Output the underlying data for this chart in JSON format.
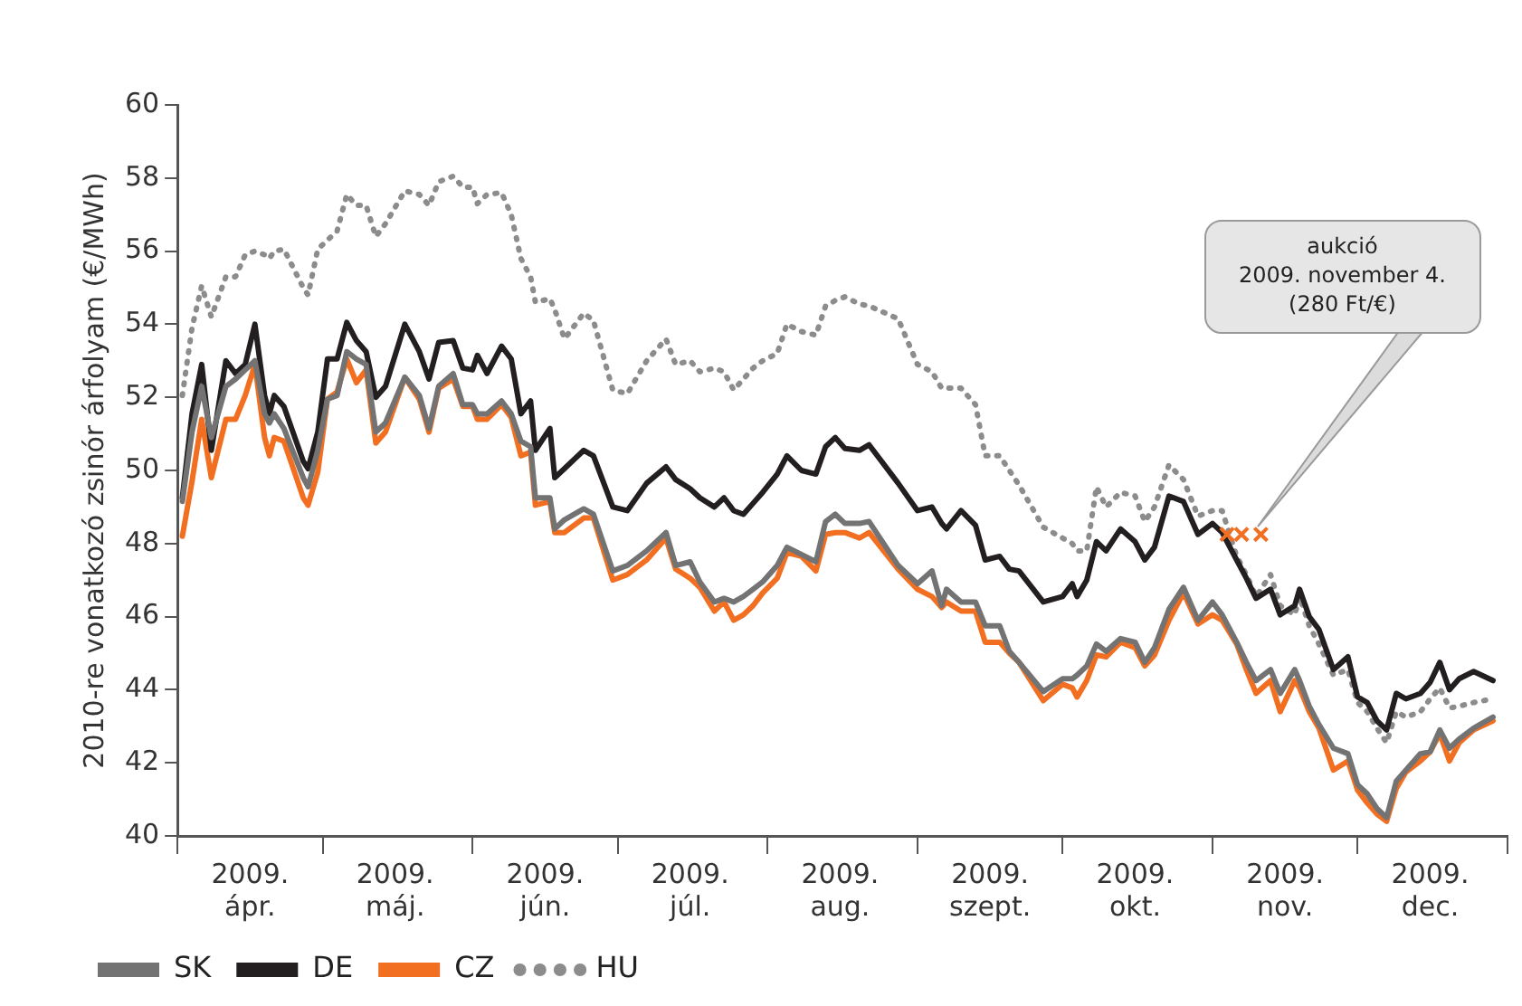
{
  "chart_data": {
    "type": "line",
    "ylabel": "2010-re vonatkozó zsinór árfolyam (€/MWh)",
    "ylim": [
      40,
      60
    ],
    "yticks": [
      40,
      42,
      44,
      46,
      48,
      50,
      52,
      54,
      56,
      58,
      60
    ],
    "xlim": [
      "2009-04-01",
      "2010-01-01"
    ],
    "xticks": [
      {
        "value": "2009-04-01",
        "label": null
      },
      {
        "value": "2009-04-16",
        "label": "2009.\nápr."
      },
      {
        "value": "2009-05-01",
        "label": null
      },
      {
        "value": "2009-05-16",
        "label": "2009.\nmáj."
      },
      {
        "value": "2009-06-01",
        "label": null
      },
      {
        "value": "2009-06-16",
        "label": "2009.\njún."
      },
      {
        "value": "2009-07-01",
        "label": null
      },
      {
        "value": "2009-07-16",
        "label": "2009.\njúl."
      },
      {
        "value": "2009-08-01",
        "label": null
      },
      {
        "value": "2009-08-16",
        "label": "2009.\naug."
      },
      {
        "value": "2009-09-01",
        "label": null
      },
      {
        "value": "2009-09-16",
        "label": "2009.\nszept."
      },
      {
        "value": "2009-10-01",
        "label": null
      },
      {
        "value": "2009-10-16",
        "label": "2009.\nokt."
      },
      {
        "value": "2009-11-01",
        "label": null
      },
      {
        "value": "2009-11-16",
        "label": "2009.\nnov."
      },
      {
        "value": "2009-12-01",
        "label": null
      },
      {
        "value": "2009-12-16",
        "label": "2009.\ndec."
      },
      {
        "value": "2010-01-01",
        "label": null
      }
    ],
    "x": [
      "2009-04-02",
      "2009-04-04",
      "2009-04-06",
      "2009-04-08",
      "2009-04-11",
      "2009-04-13",
      "2009-04-15",
      "2009-04-17",
      "2009-04-19",
      "2009-04-20",
      "2009-04-21",
      "2009-04-23",
      "2009-04-27",
      "2009-04-28",
      "2009-04-30",
      "2009-05-02",
      "2009-05-04",
      "2009-05-06",
      "2009-05-08",
      "2009-05-10",
      "2009-05-12",
      "2009-05-14",
      "2009-05-18",
      "2009-05-21",
      "2009-05-23",
      "2009-05-25",
      "2009-05-28",
      "2009-05-30",
      "2009-06-01",
      "2009-06-02",
      "2009-06-04",
      "2009-06-07",
      "2009-06-09",
      "2009-06-11",
      "2009-06-13",
      "2009-06-14",
      "2009-06-17",
      "2009-06-18",
      "2009-06-20",
      "2009-06-24",
      "2009-06-26",
      "2009-06-30",
      "2009-07-03",
      "2009-07-07",
      "2009-07-11",
      "2009-07-13",
      "2009-07-16",
      "2009-07-18",
      "2009-07-21",
      "2009-07-23",
      "2009-07-25",
      "2009-07-27",
      "2009-07-29",
      "2009-07-31",
      "2009-08-03",
      "2009-08-05",
      "2009-08-08",
      "2009-08-11",
      "2009-08-13",
      "2009-08-15",
      "2009-08-17",
      "2009-08-20",
      "2009-08-22",
      "2009-08-28",
      "2009-09-01",
      "2009-09-04",
      "2009-09-06",
      "2009-09-07",
      "2009-09-10",
      "2009-09-13",
      "2009-09-15",
      "2009-09-18",
      "2009-09-20",
      "2009-09-22",
      "2009-09-27",
      "2009-10-01",
      "2009-10-03",
      "2009-10-04",
      "2009-10-06",
      "2009-10-08",
      "2009-10-10",
      "2009-10-13",
      "2009-10-16",
      "2009-10-18",
      "2009-10-20",
      "2009-10-23",
      "2009-10-26",
      "2009-10-29",
      "2009-11-01",
      "2009-11-03",
      "2009-11-06",
      "2009-11-08",
      "2009-11-10",
      "2009-11-13",
      "2009-11-15",
      "2009-11-18",
      "2009-11-19",
      "2009-11-21",
      "2009-11-23",
      "2009-11-26",
      "2009-11-29",
      "2009-12-01",
      "2009-12-03",
      "2009-12-05",
      "2009-12-07",
      "2009-12-09",
      "2009-12-11",
      "2009-12-14",
      "2009-12-16",
      "2009-12-18",
      "2009-12-20",
      "2009-12-22",
      "2009-12-25",
      "2009-12-29"
    ],
    "series": [
      {
        "name": "SK",
        "color": "#737373",
        "values": [
          49.15,
          51.05,
          52.3,
          50.9,
          52.3,
          52.5,
          52.75,
          53.0,
          51.55,
          51.3,
          51.55,
          51.15,
          49.8,
          49.55,
          50.55,
          51.95,
          52.05,
          53.25,
          53.05,
          52.9,
          51.05,
          51.3,
          52.55,
          52.05,
          51.15,
          52.3,
          52.65,
          51.8,
          51.8,
          51.55,
          51.55,
          51.9,
          51.55,
          50.8,
          50.65,
          49.25,
          49.25,
          48.4,
          48.65,
          48.95,
          48.8,
          47.25,
          47.4,
          47.8,
          48.3,
          47.4,
          47.5,
          46.95,
          46.4,
          46.5,
          46.4,
          46.55,
          46.75,
          46.95,
          47.4,
          47.9,
          47.7,
          47.5,
          48.6,
          48.8,
          48.55,
          48.55,
          48.6,
          47.4,
          46.9,
          47.25,
          46.3,
          46.75,
          46.4,
          46.4,
          45.75,
          45.75,
          45.05,
          44.75,
          43.95,
          44.3,
          44.3,
          44.4,
          44.65,
          45.25,
          45.05,
          45.4,
          45.3,
          44.75,
          45.15,
          46.2,
          46.8,
          45.9,
          46.4,
          46.05,
          45.3,
          44.75,
          44.25,
          44.55,
          43.9,
          44.55,
          44.25,
          43.55,
          43.05,
          42.4,
          42.25,
          41.4,
          41.15,
          40.75,
          40.5,
          41.5,
          41.8,
          42.25,
          42.3,
          42.9,
          42.4,
          42.65,
          42.95,
          43.25
        ]
      },
      {
        "name": "DE",
        "color": "#231f20",
        "values": [
          49.25,
          51.55,
          52.9,
          50.55,
          53.0,
          52.65,
          52.9,
          54.0,
          52.05,
          51.55,
          52.05,
          51.75,
          50.25,
          50.05,
          51.05,
          53.05,
          53.05,
          54.05,
          53.55,
          53.25,
          52.0,
          52.3,
          54.0,
          53.25,
          52.5,
          53.5,
          53.55,
          52.8,
          52.75,
          53.15,
          52.65,
          53.4,
          53.05,
          51.55,
          51.9,
          50.55,
          51.15,
          49.8,
          50.05,
          50.55,
          50.4,
          49.0,
          48.9,
          49.65,
          50.1,
          49.75,
          49.5,
          49.25,
          49.0,
          49.25,
          48.9,
          48.8,
          49.1,
          49.4,
          49.9,
          50.4,
          50.0,
          49.9,
          50.65,
          50.9,
          50.6,
          50.55,
          50.7,
          49.65,
          48.9,
          49.0,
          48.55,
          48.4,
          48.9,
          48.5,
          47.55,
          47.65,
          47.3,
          47.25,
          46.4,
          46.55,
          46.9,
          46.55,
          47.0,
          48.05,
          47.8,
          48.4,
          48.05,
          47.55,
          47.9,
          49.3,
          49.15,
          48.25,
          48.55,
          48.3,
          47.55,
          47.05,
          46.5,
          46.75,
          46.05,
          46.3,
          46.75,
          46.0,
          45.65,
          44.55,
          44.9,
          43.8,
          43.65,
          43.15,
          42.9,
          43.9,
          43.75,
          43.9,
          44.2,
          44.75,
          44.0,
          44.3,
          44.5,
          44.25
        ]
      },
      {
        "name": "CZ",
        "color": "#f26f21",
        "values": [
          48.2,
          49.7,
          51.4,
          49.8,
          51.4,
          51.4,
          52.05,
          52.9,
          50.9,
          50.4,
          50.9,
          50.8,
          49.25,
          49.05,
          49.95,
          51.95,
          52.15,
          53.05,
          52.4,
          52.75,
          50.75,
          51.05,
          52.55,
          51.95,
          51.05,
          52.25,
          52.5,
          51.75,
          51.75,
          51.4,
          51.4,
          51.8,
          51.45,
          50.4,
          50.5,
          49.05,
          49.15,
          48.3,
          48.3,
          48.7,
          48.7,
          47.0,
          47.15,
          47.55,
          48.15,
          47.3,
          47.05,
          46.8,
          46.15,
          46.4,
          45.9,
          46.05,
          46.3,
          46.65,
          47.05,
          47.75,
          47.65,
          47.25,
          48.25,
          48.3,
          48.3,
          48.15,
          48.3,
          47.3,
          46.75,
          46.55,
          46.25,
          46.4,
          46.15,
          46.15,
          45.3,
          45.3,
          45.0,
          44.75,
          43.7,
          44.15,
          44.05,
          43.8,
          44.25,
          44.95,
          44.9,
          45.3,
          45.15,
          44.65,
          44.95,
          45.9,
          46.65,
          45.8,
          46.05,
          45.9,
          45.25,
          44.55,
          43.9,
          44.25,
          43.4,
          44.25,
          44.05,
          43.4,
          42.95,
          41.8,
          42.05,
          41.25,
          40.9,
          40.6,
          40.4,
          41.3,
          41.75,
          42.05,
          42.3,
          42.8,
          42.05,
          42.55,
          42.9,
          43.15
        ]
      },
      {
        "name": "HU",
        "color": "#8c8c8c",
        "line_style": "dotted",
        "values": [
          52.05,
          53.9,
          55.05,
          54.2,
          55.3,
          55.3,
          55.9,
          56.0,
          55.9,
          55.8,
          56.0,
          56.05,
          55.0,
          54.8,
          56.05,
          56.3,
          56.55,
          57.55,
          57.25,
          57.25,
          56.4,
          56.75,
          57.65,
          57.55,
          57.25,
          57.9,
          58.05,
          57.75,
          57.75,
          57.3,
          57.55,
          57.6,
          57.0,
          55.8,
          55.3,
          54.6,
          54.7,
          54.4,
          53.6,
          54.3,
          54.1,
          52.2,
          52.1,
          53.0,
          53.6,
          52.9,
          53.0,
          52.7,
          52.8,
          52.7,
          52.2,
          52.5,
          52.8,
          53.0,
          53.2,
          54.0,
          53.8,
          53.7,
          54.5,
          54.65,
          54.75,
          54.55,
          54.5,
          54.15,
          52.9,
          52.7,
          52.25,
          52.25,
          52.25,
          51.8,
          50.4,
          50.4,
          50.0,
          49.6,
          48.45,
          48.15,
          48.0,
          47.8,
          47.8,
          49.55,
          49.0,
          49.4,
          49.3,
          48.6,
          49.0,
          50.15,
          49.75,
          48.75,
          48.9,
          48.9,
          47.65,
          47.15,
          46.55,
          47.15,
          46.3,
          46.05,
          46.55,
          45.75,
          45.25,
          44.4,
          44.55,
          43.65,
          43.4,
          42.95,
          42.55,
          43.4,
          43.25,
          43.4,
          43.75,
          44.05,
          43.5,
          43.55,
          43.65,
          43.75
        ]
      },
      {
        "type": "scatter",
        "marker": "cross",
        "color": "#f26f21",
        "x": [
          "2009-11-04",
          "2009-11-07",
          "2009-11-11"
        ],
        "values": [
          48.25,
          48.25,
          48.25
        ]
      }
    ],
    "marker": "none",
    "legend": "bottom left",
    "grid": false,
    "annotations": [
      "aukció\n2009. november 4.\n(280 Ft/€)"
    ]
  }
}
